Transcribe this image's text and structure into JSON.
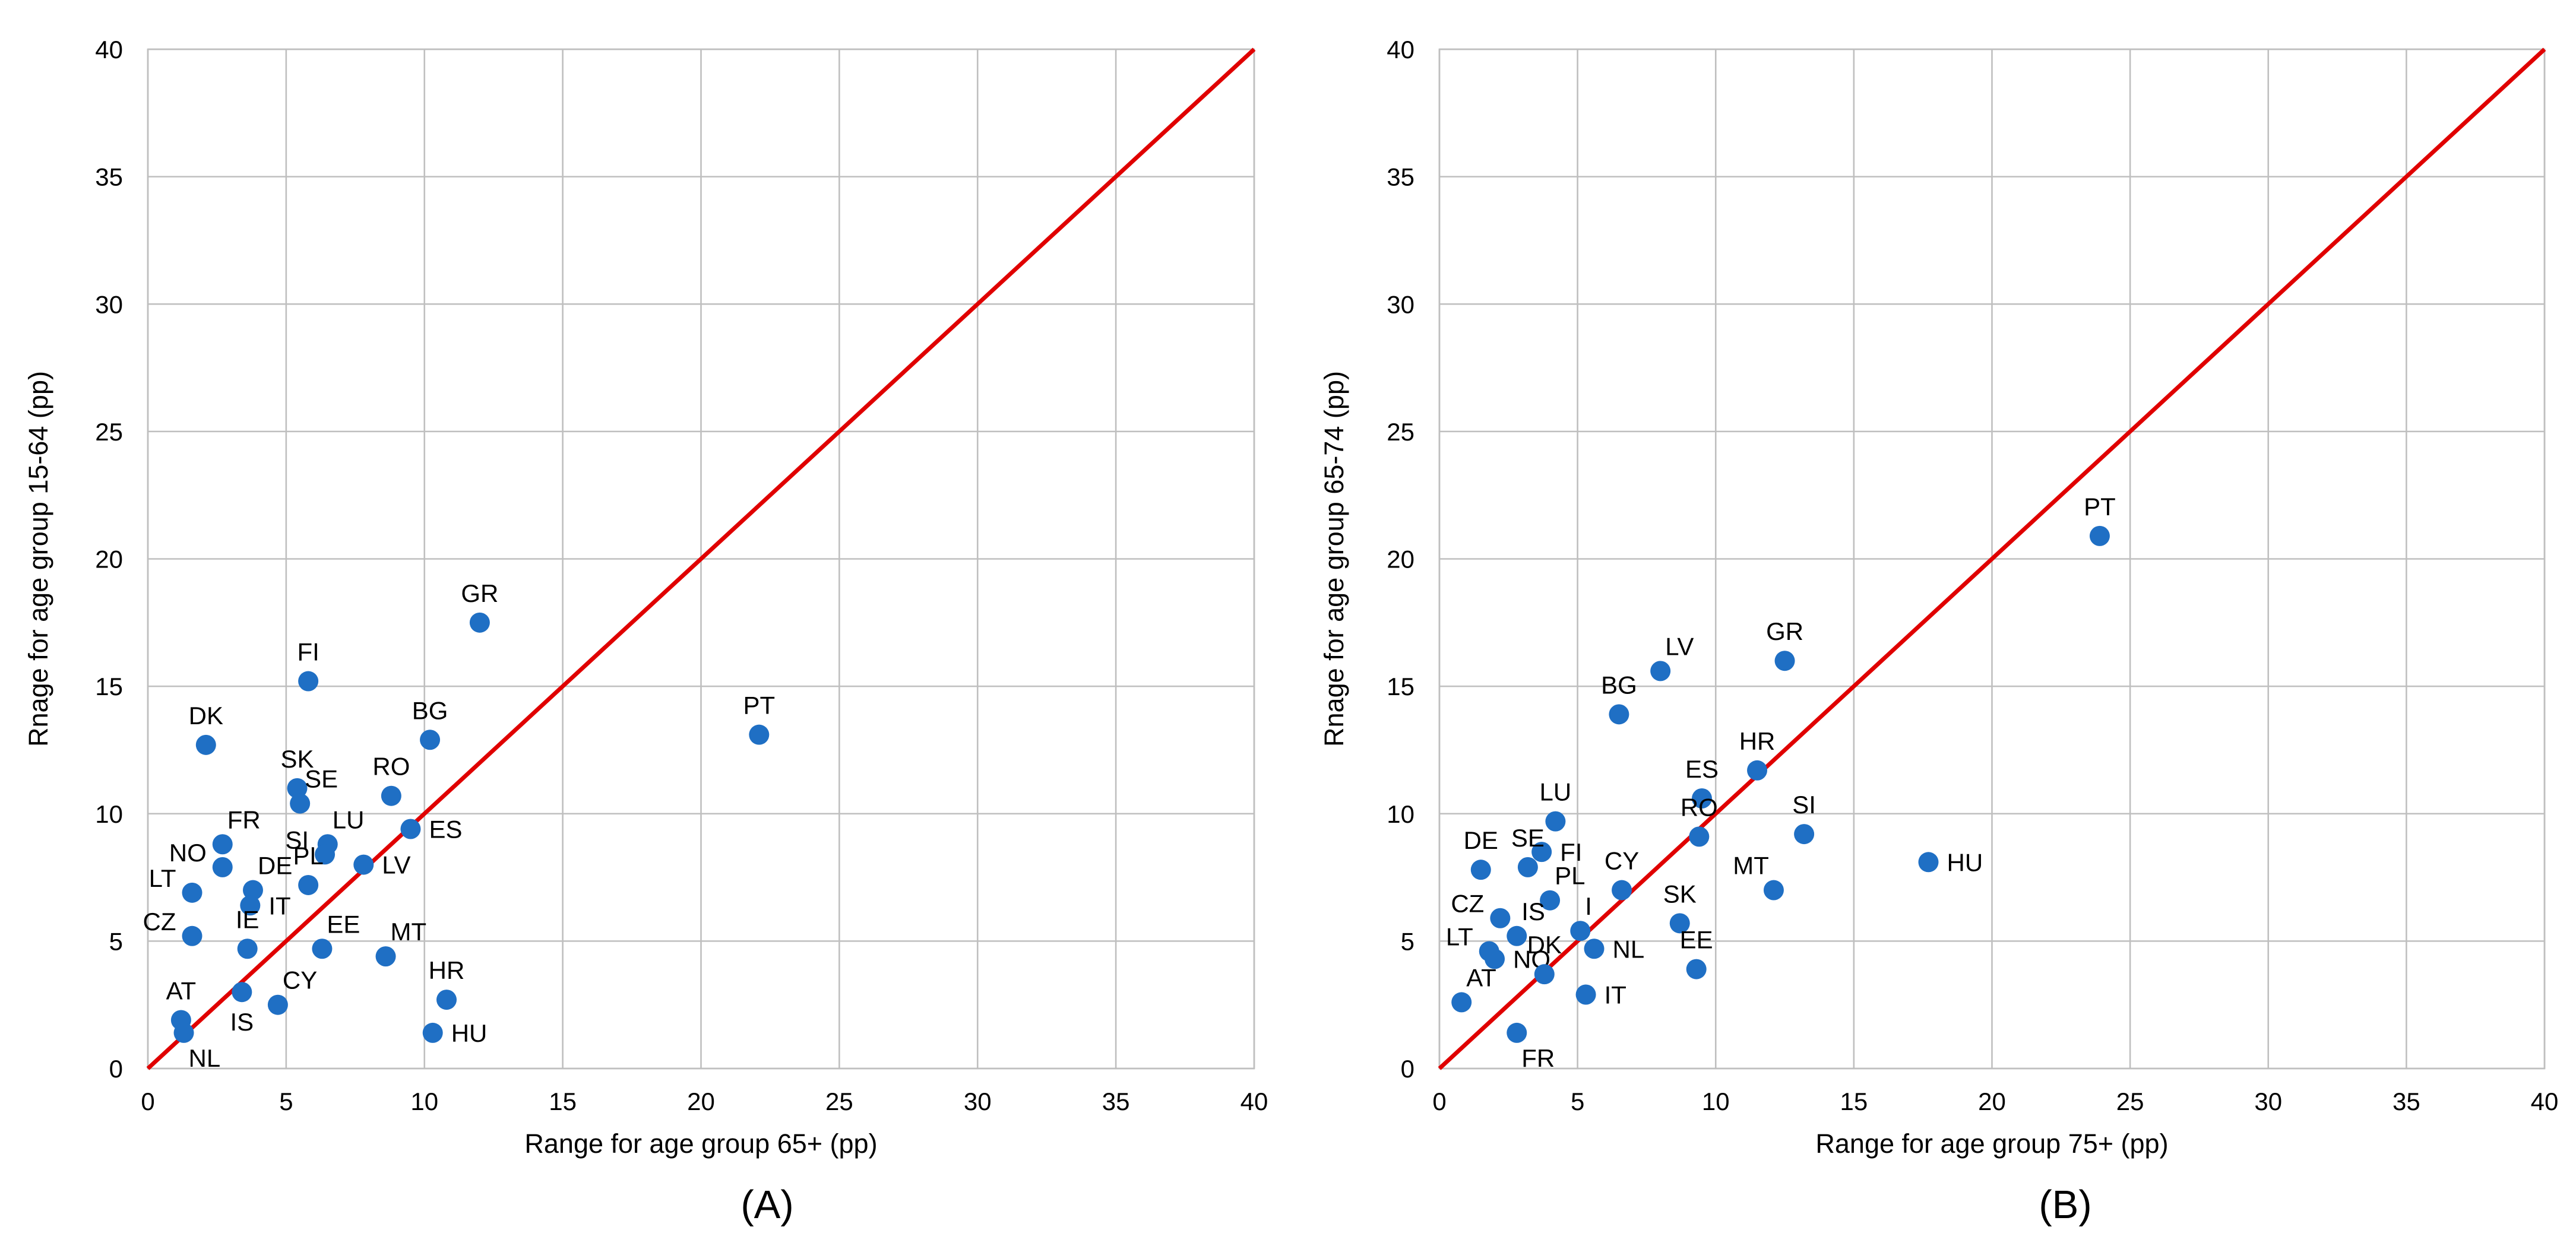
{
  "figure": {
    "colors": {
      "point": "#1f6fc4",
      "reference_line": "#e00000",
      "grid": "#bfbfbf",
      "text": "#000000"
    }
  },
  "chart_data": [
    {
      "type": "scatter",
      "caption": "(A)",
      "xlabel": "Range for age group 65+ (pp)",
      "ylabel": "Rnage for age group 15-64 (pp)",
      "xlim": [
        0,
        40
      ],
      "ylim": [
        0,
        40
      ],
      "xticks": [
        "0",
        "5",
        "10",
        "15",
        "20",
        "25",
        "30",
        "35",
        "40"
      ],
      "yticks": [
        "0",
        "5",
        "10",
        "15",
        "20",
        "25",
        "30",
        "35",
        "40"
      ],
      "grid": true,
      "reference_line": "y = x",
      "points": [
        {
          "label": "GR",
          "x": 12.0,
          "y": 17.5,
          "pos": "above"
        },
        {
          "label": "FI",
          "x": 5.8,
          "y": 15.2,
          "pos": "above"
        },
        {
          "label": "DK",
          "x": 2.1,
          "y": 12.7,
          "pos": "above"
        },
        {
          "label": "BG",
          "x": 10.2,
          "y": 12.9,
          "pos": "above"
        },
        {
          "label": "PT",
          "x": 22.1,
          "y": 13.1,
          "pos": "above"
        },
        {
          "label": "SK",
          "x": 5.4,
          "y": 11.0,
          "pos": "above"
        },
        {
          "label": "RO",
          "x": 8.8,
          "y": 10.7,
          "pos": "above"
        },
        {
          "label": "SE",
          "x": 5.5,
          "y": 10.4,
          "pos": "aboveright"
        },
        {
          "label": "ES",
          "x": 9.5,
          "y": 9.4,
          "pos": "right"
        },
        {
          "label": "FR",
          "x": 2.7,
          "y": 8.8,
          "pos": "aboveright"
        },
        {
          "label": "LU",
          "x": 6.5,
          "y": 8.8,
          "pos": "aboveright"
        },
        {
          "label": "SI",
          "x": 6.4,
          "y": 8.4,
          "pos": "left"
        },
        {
          "label": "LV",
          "x": 7.8,
          "y": 8.0,
          "pos": "right"
        },
        {
          "label": "NO",
          "x": 2.7,
          "y": 7.9,
          "pos": "left"
        },
        {
          "label": "PL",
          "x": 5.8,
          "y": 7.2,
          "pos": "above"
        },
        {
          "label": "DE",
          "x": 3.8,
          "y": 7.0,
          "pos": "aboveright"
        },
        {
          "label": "LT",
          "x": 1.6,
          "y": 6.9,
          "pos": "left"
        },
        {
          "label": "IT",
          "x": 3.7,
          "y": 6.4,
          "pos": "right"
        },
        {
          "label": "CZ",
          "x": 1.6,
          "y": 5.2,
          "pos": "left"
        },
        {
          "label": "IE",
          "x": 3.6,
          "y": 4.7,
          "pos": "above"
        },
        {
          "label": "EE",
          "x": 6.3,
          "y": 4.7,
          "pos": "aboveright"
        },
        {
          "label": "MT",
          "x": 8.6,
          "y": 4.4,
          "pos": "aboveright"
        },
        {
          "label": "AT",
          "x": 1.2,
          "y": 1.9,
          "pos": "above"
        },
        {
          "label": "NL",
          "x": 1.3,
          "y": 1.4,
          "pos": "belowright"
        },
        {
          "label": "IS",
          "x": 3.4,
          "y": 3.0,
          "pos": "below"
        },
        {
          "label": "CY",
          "x": 4.7,
          "y": 2.5,
          "pos": "aboveright"
        },
        {
          "label": "HR",
          "x": 10.8,
          "y": 2.7,
          "pos": "above"
        },
        {
          "label": "HU",
          "x": 10.3,
          "y": 1.4,
          "pos": "right"
        }
      ]
    },
    {
      "type": "scatter",
      "caption": "(B)",
      "xlabel": "Range for age group 75+ (pp)",
      "ylabel": "Rnage for age group 65-74 (pp)",
      "xlim": [
        0,
        40
      ],
      "ylim": [
        0,
        40
      ],
      "xticks": [
        "0",
        "5",
        "10",
        "15",
        "20",
        "25",
        "30",
        "35",
        "40"
      ],
      "yticks": [
        "0",
        "5",
        "10",
        "15",
        "20",
        "25",
        "30",
        "35",
        "40"
      ],
      "grid": true,
      "reference_line": "y = x",
      "points": [
        {
          "label": "PT",
          "x": 23.9,
          "y": 20.9,
          "pos": "above"
        },
        {
          "label": "LV",
          "x": 8.0,
          "y": 15.6,
          "pos": "aboveright"
        },
        {
          "label": "GR",
          "x": 12.5,
          "y": 16.0,
          "pos": "above"
        },
        {
          "label": "BG",
          "x": 6.5,
          "y": 13.9,
          "pos": "above"
        },
        {
          "label": "HR",
          "x": 11.5,
          "y": 11.7,
          "pos": "above"
        },
        {
          "label": "ES",
          "x": 9.5,
          "y": 10.6,
          "pos": "above"
        },
        {
          "label": "LU",
          "x": 4.2,
          "y": 9.7,
          "pos": "above"
        },
        {
          "label": "RO",
          "x": 9.4,
          "y": 9.1,
          "pos": "above"
        },
        {
          "label": "SI",
          "x": 13.2,
          "y": 9.2,
          "pos": "above"
        },
        {
          "label": "HU",
          "x": 17.7,
          "y": 8.1,
          "pos": "right"
        },
        {
          "label": "FI",
          "x": 3.7,
          "y": 8.5,
          "pos": "right"
        },
        {
          "label": "DE",
          "x": 1.5,
          "y": 7.8,
          "pos": "above"
        },
        {
          "label": "SE",
          "x": 3.2,
          "y": 7.9,
          "pos": "above"
        },
        {
          "label": "CY",
          "x": 6.6,
          "y": 7.0,
          "pos": "above"
        },
        {
          "label": "MT",
          "x": 12.1,
          "y": 7.0,
          "pos": "aboveleft"
        },
        {
          "label": "PL",
          "x": 4.0,
          "y": 6.6,
          "pos": "aboveright"
        },
        {
          "label": "CZ",
          "x": 2.2,
          "y": 5.9,
          "pos": "left"
        },
        {
          "label": "IS",
          "x": 2.8,
          "y": 5.2,
          "pos": "aboveright"
        },
        {
          "label": "I",
          "x": 5.1,
          "y": 5.4,
          "pos": "aboveright"
        },
        {
          "label": "SK",
          "x": 8.7,
          "y": 5.7,
          "pos": "above"
        },
        {
          "label": "NL",
          "x": 5.6,
          "y": 4.7,
          "pos": "right"
        },
        {
          "label": "LT",
          "x": 1.8,
          "y": 4.6,
          "pos": "left"
        },
        {
          "label": "NO",
          "x": 2.0,
          "y": 4.3,
          "pos": "right"
        },
        {
          "label": "EE",
          "x": 9.3,
          "y": 3.9,
          "pos": "above"
        },
        {
          "label": "DK",
          "x": 3.8,
          "y": 3.7,
          "pos": "above"
        },
        {
          "label": "AT",
          "x": 0.8,
          "y": 2.6,
          "pos": "aboveright"
        },
        {
          "label": "IT",
          "x": 5.3,
          "y": 2.9,
          "pos": "right"
        },
        {
          "label": "FR",
          "x": 2.8,
          "y": 1.4,
          "pos": "belowright"
        }
      ]
    }
  ]
}
